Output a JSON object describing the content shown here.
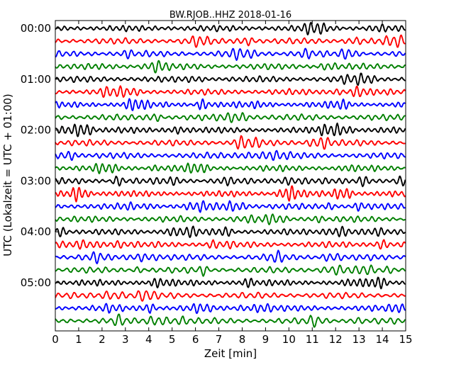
{
  "chart_data": {
    "type": "line",
    "title": "BW.RJOB..HHZ 2018-01-16",
    "xlabel": "Zeit  [min]",
    "ylabel": "UTC (Lokalzeit = UTC + 01:00)",
    "xlim": [
      0,
      15
    ],
    "x_ticks": [
      "0",
      "1",
      "2",
      "3",
      "4",
      "5",
      "6",
      "7",
      "8",
      "9",
      "10",
      "11",
      "12",
      "13",
      "14",
      "15"
    ],
    "y_ticks": [
      "00:00",
      "01:00",
      "02:00",
      "03:00",
      "04:00",
      "05:00"
    ],
    "trace_interval_minutes": 15,
    "trace_count": 24,
    "trace_colors": [
      "#000000",
      "#ff0000",
      "#0000ff",
      "#008000"
    ],
    "grid": false,
    "legend": "none"
  }
}
